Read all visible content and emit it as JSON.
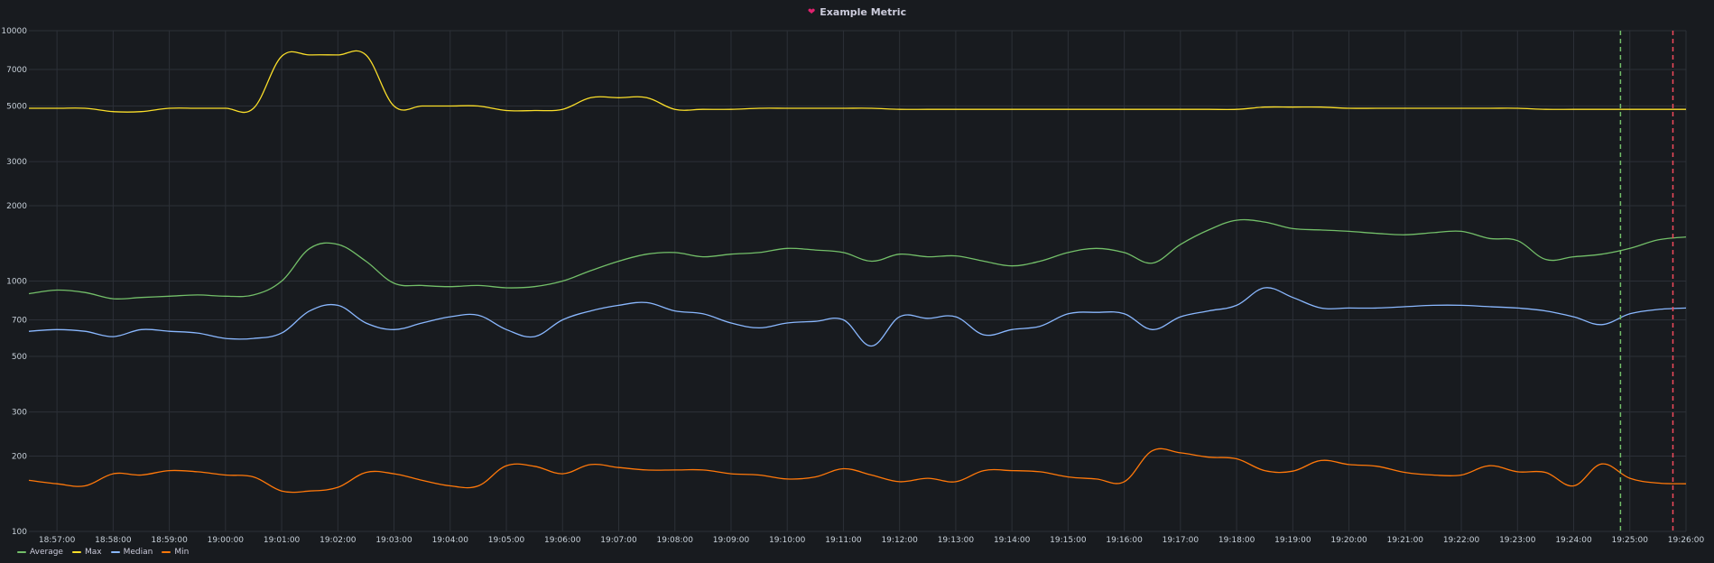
{
  "panel": {
    "title": "Example Metric",
    "title_icon": "heart-icon",
    "title_icon_color": "#e02f6e"
  },
  "chart_data": {
    "type": "line",
    "title": "Example Metric",
    "xlabel": "",
    "ylabel": "",
    "y_scale": "log",
    "ylim": [
      100,
      10000
    ],
    "y_ticks": [
      100,
      200,
      300,
      500,
      700,
      1000,
      2000,
      3000,
      5000,
      7000,
      10000
    ],
    "xlim": [
      "18:56:30",
      "19:26:00"
    ],
    "x_ticks": [
      "18:57:00",
      "18:58:00",
      "18:59:00",
      "19:00:00",
      "19:01:00",
      "19:02:00",
      "19:03:00",
      "19:04:00",
      "19:05:00",
      "19:06:00",
      "19:07:00",
      "19:08:00",
      "19:09:00",
      "19:10:00",
      "19:11:00",
      "19:12:00",
      "19:13:00",
      "19:14:00",
      "19:15:00",
      "19:16:00",
      "19:17:00",
      "19:18:00",
      "19:19:00",
      "19:20:00",
      "19:21:00",
      "19:22:00",
      "19:23:00",
      "19:24:00",
      "19:25:00",
      "19:26:00"
    ],
    "grid": true,
    "legend_position": "bottom-left",
    "x": [
      "18:56:30",
      "18:57:00",
      "18:57:30",
      "18:58:00",
      "18:58:30",
      "18:59:00",
      "18:59:30",
      "19:00:00",
      "19:00:30",
      "19:01:00",
      "19:01:30",
      "19:02:00",
      "19:02:30",
      "19:03:00",
      "19:03:30",
      "19:04:00",
      "19:04:30",
      "19:05:00",
      "19:05:30",
      "19:06:00",
      "19:06:30",
      "19:07:00",
      "19:07:30",
      "19:08:00",
      "19:08:30",
      "19:09:00",
      "19:09:30",
      "19:10:00",
      "19:10:30",
      "19:11:00",
      "19:11:30",
      "19:12:00",
      "19:12:30",
      "19:13:00",
      "19:13:30",
      "19:14:00",
      "19:14:30",
      "19:15:00",
      "19:15:30",
      "19:16:00",
      "19:16:30",
      "19:17:00",
      "19:17:30",
      "19:18:00",
      "19:18:30",
      "19:19:00",
      "19:19:30",
      "19:20:00",
      "19:20:30",
      "19:21:00",
      "19:21:30",
      "19:22:00",
      "19:22:30",
      "19:23:00",
      "19:23:30",
      "19:24:00",
      "19:24:30",
      "19:25:00",
      "19:25:30",
      "19:26:00"
    ],
    "series": [
      {
        "name": "Average",
        "color": "#73bf69",
        "values": [
          890,
          920,
          900,
          850,
          860,
          870,
          880,
          870,
          880,
          1000,
          1350,
          1400,
          1200,
          980,
          960,
          950,
          960,
          940,
          950,
          1000,
          1100,
          1200,
          1280,
          1300,
          1250,
          1280,
          1300,
          1350,
          1330,
          1300,
          1200,
          1280,
          1250,
          1260,
          1200,
          1150,
          1200,
          1300,
          1350,
          1300,
          1180,
          1400,
          1600,
          1750,
          1720,
          1620,
          1600,
          1580,
          1550,
          1530,
          1560,
          1580,
          1480,
          1450,
          1220,
          1250,
          1280,
          1350,
          1460,
          1500
        ]
      },
      {
        "name": "Max",
        "color": "#fade2a",
        "values": [
          4900,
          4900,
          4900,
          4750,
          4750,
          4900,
          4900,
          4900,
          4900,
          7900,
          8000,
          8000,
          8000,
          5000,
          5000,
          5000,
          5000,
          4800,
          4800,
          4850,
          5400,
          5400,
          5400,
          4850,
          4850,
          4850,
          4900,
          4900,
          4900,
          4900,
          4900,
          4850,
          4850,
          4850,
          4850,
          4850,
          4850,
          4850,
          4850,
          4850,
          4850,
          4850,
          4850,
          4850,
          4950,
          4950,
          4950,
          4900,
          4900,
          4900,
          4900,
          4900,
          4900,
          4900,
          4850,
          4850,
          4850,
          4850,
          4850,
          4850
        ]
      },
      {
        "name": "Median",
        "color": "#8ab8ff",
        "values": [
          630,
          640,
          630,
          600,
          640,
          630,
          620,
          590,
          590,
          620,
          760,
          800,
          680,
          640,
          680,
          720,
          730,
          640,
          600,
          700,
          760,
          800,
          820,
          760,
          740,
          680,
          650,
          680,
          690,
          700,
          550,
          720,
          710,
          720,
          610,
          640,
          660,
          740,
          750,
          740,
          640,
          720,
          760,
          800,
          940,
          860,
          780,
          780,
          780,
          790,
          800,
          800,
          790,
          780,
          760,
          720,
          670,
          740,
          770,
          780
        ]
      },
      {
        "name": "Min",
        "color": "#ff780a",
        "values": [
          160,
          155,
          152,
          170,
          168,
          175,
          173,
          168,
          165,
          145,
          145,
          150,
          172,
          170,
          160,
          152,
          152,
          183,
          182,
          170,
          185,
          180,
          176,
          176,
          176,
          170,
          168,
          162,
          165,
          178,
          168,
          158,
          163,
          158,
          175,
          175,
          173,
          165,
          162,
          158,
          210,
          206,
          198,
          195,
          175,
          174,
          192,
          185,
          182,
          172,
          168,
          168,
          183,
          173,
          172,
          152,
          186,
          163,
          156,
          155
        ]
      }
    ],
    "annotations": [
      {
        "x": "19:24:50",
        "color": "#73bf69",
        "style": "dashed"
      },
      {
        "x": "19:25:46",
        "color": "#f2495c",
        "style": "dashed"
      }
    ]
  }
}
